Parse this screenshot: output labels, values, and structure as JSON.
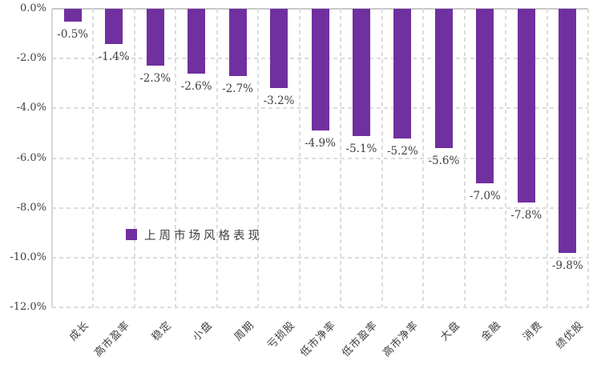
{
  "chart_data": {
    "type": "bar",
    "title": "",
    "legend": "上周市场风格表现",
    "legend_position": "inside-left",
    "categories": [
      "成长",
      "高市盈率",
      "稳定",
      "小盘",
      "周期",
      "亏损股",
      "低市净率",
      "低市盈率",
      "高市净率",
      "大盘",
      "金融",
      "消费",
      "绩优股"
    ],
    "values": [
      -0.5,
      -1.4,
      -2.3,
      -2.6,
      -2.7,
      -3.2,
      -4.9,
      -5.1,
      -5.2,
      -5.6,
      -7.0,
      -7.8,
      -9.8
    ],
    "value_labels": [
      "-0.5%",
      "-1.4%",
      "-2.3%",
      "-2.6%",
      "-2.7%",
      "-3.2%",
      "-4.9%",
      "-5.1%",
      "-5.2%",
      "-5.6%",
      "-7.0%",
      "-7.8%",
      "-9.8%"
    ],
    "yticks": [
      0,
      -2,
      -4,
      -6,
      -8,
      -10,
      -12
    ],
    "ytick_labels": [
      "0.0%",
      "-2.0%",
      "-4.0%",
      "-6.0%",
      "-8.0%",
      "-10.0%",
      "-12.0%"
    ],
    "ylim": [
      -12,
      0
    ],
    "grid": true,
    "bar_color": "#7030A0",
    "grid_color": "#dcdcdc",
    "axis_color": "#c9c9c9",
    "text_color": "#3f3f3f"
  }
}
